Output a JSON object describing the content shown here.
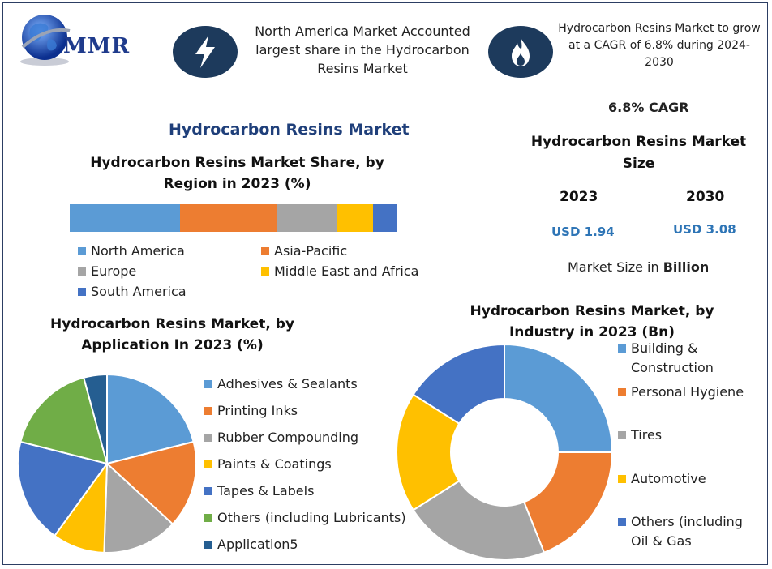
{
  "logo": {
    "text": "MMR",
    "icon": "globe-icon"
  },
  "info_left": {
    "icon": "lightning-icon",
    "text": "North America Market Accounted largest share in the Hydrocarbon Resins Market"
  },
  "info_right": {
    "icon": "flame-icon",
    "text": "Hydrocarbon Resins Market to grow at a CAGR of 6.8% during 2024-2030"
  },
  "main_title": "Hydrocarbon Resins Market",
  "cagr": "6.8% CAGR",
  "market_size": {
    "title": "Hydrocarbon Resins Market Size",
    "year_a": "2023",
    "year_b": "2030",
    "value_a": "USD 1.94",
    "value_b": "USD 3.08",
    "unit_note_prefix": "Market Size in ",
    "unit_note_bold": "Billion"
  },
  "colors": {
    "accent": "#1d3a5c",
    "title_blue": "#1f3f7a",
    "usd_blue": "#2e75b6"
  },
  "chart_data": [
    {
      "type": "bar",
      "title": "Hydrocarbon Resins Market Share, by Region in 2023 (%)",
      "orientation": "horizontal-stacked",
      "categories": [
        "North America",
        "Asia-Pacific",
        "Europe",
        "Middle East and Africa",
        "South America"
      ],
      "values": [
        33,
        29,
        18,
        11,
        7
      ],
      "colors": [
        "#5b9bd5",
        "#ed7d31",
        "#a5a5a5",
        "#ffc000",
        "#4472c4"
      ],
      "legend": "bottom"
    },
    {
      "type": "pie",
      "title": "Hydrocarbon Resins Market, by Application In 2023 (%)",
      "categories": [
        "Adhesives & Sealants",
        "Printing Inks",
        "Rubber Compounding",
        "Paints & Coatings",
        "Tapes & Labels",
        "Others (including Lubricants)",
        "Application5"
      ],
      "values": [
        20,
        15,
        13,
        9,
        18,
        16,
        4
      ],
      "colors": [
        "#5b9bd5",
        "#ed7d31",
        "#a5a5a5",
        "#ffc000",
        "#4472c4",
        "#70ad47",
        "#255e91"
      ],
      "legend": "right"
    },
    {
      "type": "pie",
      "subtype": "doughnut",
      "title": "Hydrocarbon Resins Market, by Industry in 2023 (Bn)",
      "categories": [
        "Building & Construction",
        "Personal Hygiene",
        "Tires",
        "Automotive",
        "Others (including Oil & Gas"
      ],
      "legend_lines": [
        [
          "Building &",
          "Construction"
        ],
        [
          "Personal Hygiene"
        ],
        [
          "Tires"
        ],
        [
          "Automotive"
        ],
        [
          "Others (including",
          "Oil & Gas"
        ]
      ],
      "values": [
        25,
        19,
        22,
        18,
        16
      ],
      "colors": [
        "#5b9bd5",
        "#ed7d31",
        "#a5a5a5",
        "#ffc000",
        "#4472c4"
      ],
      "legend": "right"
    }
  ]
}
